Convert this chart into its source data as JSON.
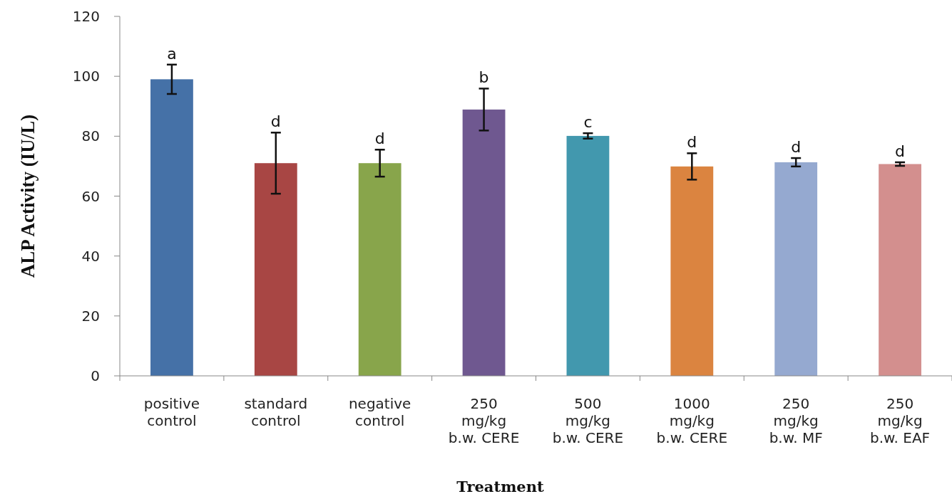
{
  "chart_data": {
    "type": "bar",
    "xlabel": "Treatment",
    "ylabel": "ALP  Activity (IU/L)",
    "categories": [
      "positive\ncontrol",
      "standard\ncontrol",
      "negative\ncontrol",
      "250\nmg/kg\nb.w. CERE",
      "500\nmg/kg\nb.w. CERE",
      "1000\nmg/kg\nb.w. CERE",
      "250\nmg/kg\nb.w. MF",
      "250\nmg/kg\nb.w. EAF"
    ],
    "values": [
      99.0,
      71.0,
      71.0,
      88.9,
      80.1,
      69.9,
      71.3,
      70.7
    ],
    "errors": [
      4.9,
      10.2,
      4.5,
      7.0,
      0.9,
      4.4,
      1.4,
      0.6
    ],
    "colors": [
      "#4571a7",
      "#a84644",
      "#88a54b",
      "#6f5890",
      "#4298ae",
      "#db8440",
      "#95a9d0",
      "#d38f8e"
    ],
    "ylim": [
      0,
      120
    ],
    "yticks": [
      0,
      20,
      40,
      60,
      80,
      100,
      120
    ],
    "grid": false,
    "annotations": [
      {
        "text": "a",
        "x": "positive\ncontrol",
        "y": 103.9
      },
      {
        "text": "d",
        "x": "standard\ncontrol",
        "y": 81.2
      },
      {
        "text": "d",
        "x": "negative\ncontrol",
        "y": 75.5
      },
      {
        "text": "b",
        "x": "250\nmg/kg\nb.w. CERE",
        "y": 95.9
      },
      {
        "text": "c",
        "x": "500\nmg/kg\nb.w. CERE",
        "y": 81.0
      },
      {
        "text": "d",
        "x": "1000\nmg/kg\nb.w. CERE",
        "y": 74.3
      },
      {
        "text": "d",
        "x": "250\nmg/kg\nb.w. MF",
        "y": 72.7
      },
      {
        "text": "d",
        "x": "250\nmg/kg\nb.w. EAF",
        "y": 71.3
      }
    ]
  }
}
